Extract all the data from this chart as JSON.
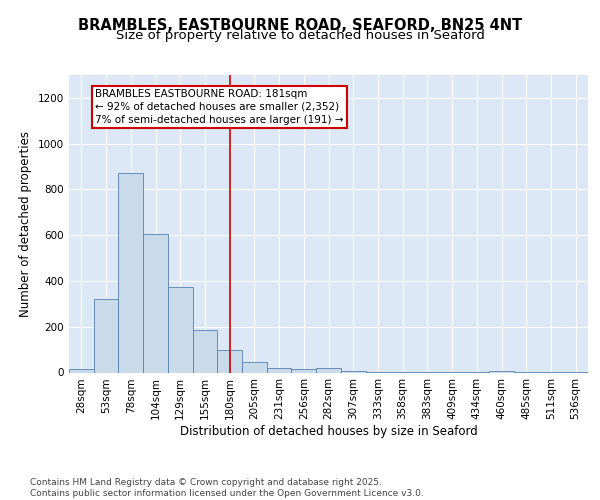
{
  "title1": "BRAMBLES, EASTBOURNE ROAD, SEAFORD, BN25 4NT",
  "title2": "Size of property relative to detached houses in Seaford",
  "xlabel": "Distribution of detached houses by size in Seaford",
  "ylabel": "Number of detached properties",
  "bin_labels": [
    "28sqm",
    "53sqm",
    "78sqm",
    "104sqm",
    "129sqm",
    "155sqm",
    "180sqm",
    "205sqm",
    "231sqm",
    "256sqm",
    "282sqm",
    "307sqm",
    "333sqm",
    "358sqm",
    "383sqm",
    "409sqm",
    "434sqm",
    "460sqm",
    "485sqm",
    "511sqm",
    "536sqm"
  ],
  "bar_values": [
    15,
    320,
    870,
    605,
    375,
    185,
    100,
    45,
    20,
    15,
    20,
    5,
    2,
    2,
    2,
    2,
    2,
    8,
    2,
    2,
    2
  ],
  "bar_color": "#c9daea",
  "bar_edge_color": "#5580b0",
  "plot_bg_color": "#dce8f5",
  "fig_bg_color": "#ffffff",
  "grid_color": "#ffffff",
  "vline_x": 6,
  "vline_color": "#cc0000",
  "annotation_text": "BRAMBLES EASTBOURNE ROAD: 181sqm\n← 92% of detached houses are smaller (2,352)\n7% of semi-detached houses are larger (191) →",
  "annotation_box_color": "#ffffff",
  "annotation_box_edge": "#cc0000",
  "ylim": [
    0,
    1300
  ],
  "yticks": [
    0,
    200,
    400,
    600,
    800,
    1000,
    1200
  ],
  "footer_text": "Contains HM Land Registry data © Crown copyright and database right 2025.\nContains public sector information licensed under the Open Government Licence v3.0.",
  "title_fontsize": 10.5,
  "subtitle_fontsize": 9.5,
  "axis_label_fontsize": 8.5,
  "tick_fontsize": 7.5,
  "annotation_fontsize": 7.5,
  "footer_fontsize": 6.5
}
